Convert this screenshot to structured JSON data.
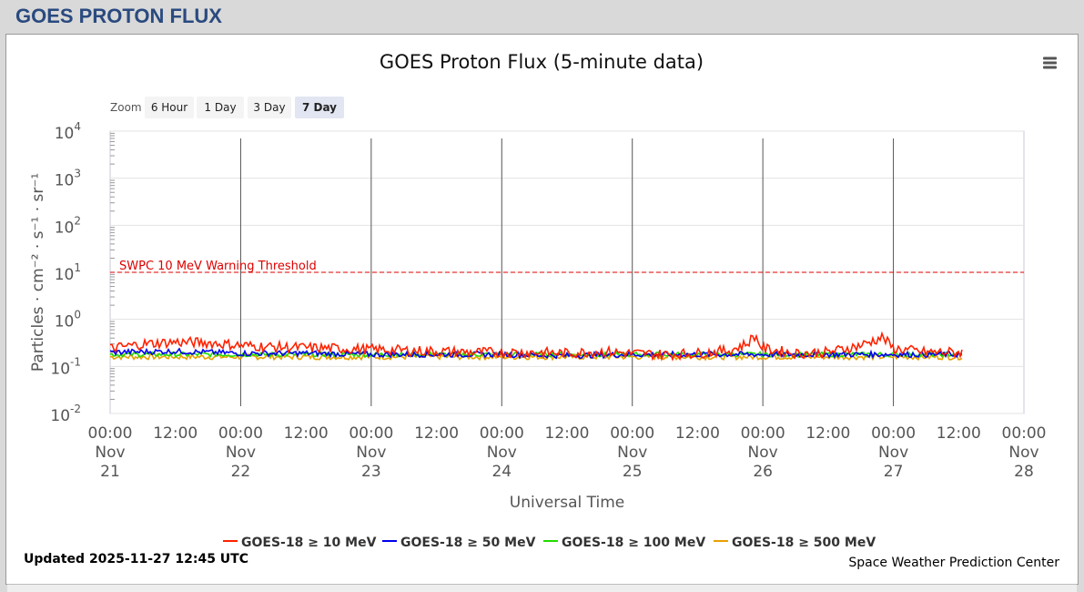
{
  "page": {
    "title": "GOES PROTON FLUX"
  },
  "zoom": {
    "label": "Zoom",
    "buttons": [
      {
        "label": "6 Hour",
        "selected": false
      },
      {
        "label": "1 Day",
        "selected": false
      },
      {
        "label": "3 Day",
        "selected": false
      },
      {
        "label": "7 Day",
        "selected": true
      }
    ]
  },
  "menu": {
    "icon": "hamburger-menu-icon"
  },
  "footer": {
    "updated": "Updated 2025-11-27 12:45 UTC",
    "credit": "Space Weather Prediction Center"
  },
  "colors": {
    "ge10": "#ff2200",
    "ge50": "#0000ee",
    "ge100": "#22dd00",
    "ge500": "#e8a000",
    "threshold": "#dd0000",
    "page_title": "#2a4a7f"
  },
  "chart_data": {
    "type": "line",
    "title": "GOES Proton Flux (5-minute data)",
    "xlabel": "Universal Time",
    "ylabel": "Particles · cm⁻² · s⁻¹ · sr⁻¹",
    "y_scale": "log",
    "ylim": [
      0.01,
      10000
    ],
    "y_ticks": [
      {
        "base": "10",
        "exp": "4"
      },
      {
        "base": "10",
        "exp": "3"
      },
      {
        "base": "10",
        "exp": "2"
      },
      {
        "base": "10",
        "exp": "1"
      },
      {
        "base": "10",
        "exp": "0"
      },
      {
        "base": "10",
        "exp": "-1"
      },
      {
        "base": "10",
        "exp": "-2"
      }
    ],
    "x_range": [
      "2025-11-21 00:00",
      "2025-11-28 00:00"
    ],
    "x_ticks": [
      {
        "time": "00:00",
        "month": "Nov",
        "day": "21"
      },
      {
        "time": "12:00",
        "month": "",
        "day": ""
      },
      {
        "time": "00:00",
        "month": "Nov",
        "day": "22"
      },
      {
        "time": "12:00",
        "month": "",
        "day": ""
      },
      {
        "time": "00:00",
        "month": "Nov",
        "day": "23"
      },
      {
        "time": "12:00",
        "month": "",
        "day": ""
      },
      {
        "time": "00:00",
        "month": "Nov",
        "day": "24"
      },
      {
        "time": "12:00",
        "month": "",
        "day": ""
      },
      {
        "time": "00:00",
        "month": "Nov",
        "day": "25"
      },
      {
        "time": "12:00",
        "month": "",
        "day": ""
      },
      {
        "time": "00:00",
        "month": "Nov",
        "day": "26"
      },
      {
        "time": "12:00",
        "month": "",
        "day": ""
      },
      {
        "time": "00:00",
        "month": "Nov",
        "day": "27"
      },
      {
        "time": "12:00",
        "month": "",
        "day": ""
      },
      {
        "time": "00:00",
        "month": "Nov",
        "day": "28"
      }
    ],
    "threshold": {
      "label": "SWPC 10 MeV Warning Threshold",
      "value": 10
    },
    "grid": true,
    "legend_position": "bottom",
    "series": [
      {
        "name": "GOES-18 ≥ 10 MeV",
        "color": "#ff2200",
        "points": [
          [
            "2025-11-21 00:00",
            0.24
          ],
          [
            "2025-11-21 06:00",
            0.3
          ],
          [
            "2025-11-21 12:00",
            0.33
          ],
          [
            "2025-11-21 18:00",
            0.32
          ],
          [
            "2025-11-22 00:00",
            0.28
          ],
          [
            "2025-11-22 06:00",
            0.26
          ],
          [
            "2025-11-22 12:00",
            0.25
          ],
          [
            "2025-11-22 18:00",
            0.24
          ],
          [
            "2025-11-23 00:00",
            0.23
          ],
          [
            "2025-11-23 06:00",
            0.22
          ],
          [
            "2025-11-23 12:00",
            0.21
          ],
          [
            "2025-11-23 18:00",
            0.2
          ],
          [
            "2025-11-24 00:00",
            0.2
          ],
          [
            "2025-11-24 06:00",
            0.2
          ],
          [
            "2025-11-24 12:00",
            0.19
          ],
          [
            "2025-11-24 18:00",
            0.21
          ],
          [
            "2025-11-25 00:00",
            0.19
          ],
          [
            "2025-11-25 06:00",
            0.18
          ],
          [
            "2025-11-25 12:00",
            0.19
          ],
          [
            "2025-11-25 18:00",
            0.22
          ],
          [
            "2025-11-25 21:00",
            0.3
          ],
          [
            "2025-11-25 22:30",
            0.45
          ],
          [
            "2025-11-26 00:00",
            0.24
          ],
          [
            "2025-11-26 06:00",
            0.19
          ],
          [
            "2025-11-26 12:00",
            0.2
          ],
          [
            "2025-11-26 18:00",
            0.28
          ],
          [
            "2025-11-26 22:00",
            0.42
          ],
          [
            "2025-11-27 00:00",
            0.24
          ],
          [
            "2025-11-27 06:00",
            0.2
          ],
          [
            "2025-11-27 12:45",
            0.2
          ]
        ]
      },
      {
        "name": "GOES-18 ≥ 50 MeV",
        "color": "#0000ee",
        "points": [
          [
            "2025-11-21 00:00",
            0.2
          ],
          [
            "2025-11-21 12:00",
            0.21
          ],
          [
            "2025-11-22 00:00",
            0.19
          ],
          [
            "2025-11-22 12:00",
            0.19
          ],
          [
            "2025-11-23 00:00",
            0.18
          ],
          [
            "2025-11-23 12:00",
            0.18
          ],
          [
            "2025-11-24 00:00",
            0.18
          ],
          [
            "2025-11-24 12:00",
            0.17
          ],
          [
            "2025-11-25 00:00",
            0.18
          ],
          [
            "2025-11-25 12:00",
            0.18
          ],
          [
            "2025-11-26 00:00",
            0.18
          ],
          [
            "2025-11-26 12:00",
            0.18
          ],
          [
            "2025-11-27 00:00",
            0.18
          ],
          [
            "2025-11-27 12:45",
            0.18
          ]
        ]
      },
      {
        "name": "GOES-18 ≥ 100 MeV",
        "color": "#22dd00",
        "points": [
          [
            "2025-11-21 00:00",
            0.18
          ],
          [
            "2025-11-21 12:00",
            0.18
          ],
          [
            "2025-11-22 00:00",
            0.18
          ],
          [
            "2025-11-22 12:00",
            0.18
          ],
          [
            "2025-11-23 00:00",
            0.18
          ],
          [
            "2025-11-23 12:00",
            0.18
          ],
          [
            "2025-11-24 00:00",
            0.18
          ],
          [
            "2025-11-24 12:00",
            0.18
          ],
          [
            "2025-11-25 00:00",
            0.18
          ],
          [
            "2025-11-25 12:00",
            0.18
          ],
          [
            "2025-11-26 00:00",
            0.18
          ],
          [
            "2025-11-26 12:00",
            0.18
          ],
          [
            "2025-11-27 00:00",
            0.18
          ],
          [
            "2025-11-27 12:45",
            0.18
          ]
        ]
      },
      {
        "name": "GOES-18 ≥ 500 MeV",
        "color": "#e8a000",
        "points": [
          [
            "2025-11-21 00:00",
            0.16
          ],
          [
            "2025-11-21 12:00",
            0.16
          ],
          [
            "2025-11-22 00:00",
            0.16
          ],
          [
            "2025-11-22 12:00",
            0.16
          ],
          [
            "2025-11-23 00:00",
            0.16
          ],
          [
            "2025-11-23 12:00",
            0.16
          ],
          [
            "2025-11-24 00:00",
            0.16
          ],
          [
            "2025-11-24 12:00",
            0.16
          ],
          [
            "2025-11-25 00:00",
            0.16
          ],
          [
            "2025-11-25 12:00",
            0.16
          ],
          [
            "2025-11-26 00:00",
            0.16
          ],
          [
            "2025-11-26 12:00",
            0.16
          ],
          [
            "2025-11-27 00:00",
            0.16
          ],
          [
            "2025-11-27 12:45",
            0.16
          ]
        ]
      }
    ]
  }
}
